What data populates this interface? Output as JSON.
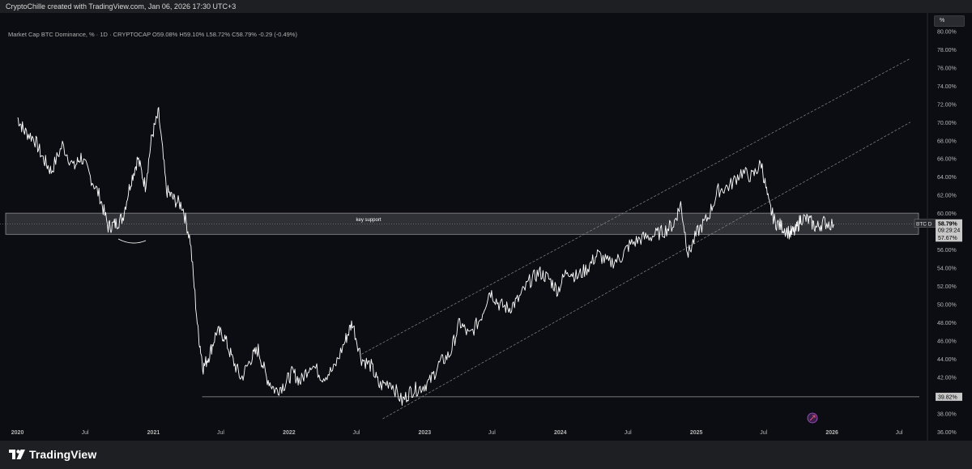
{
  "header": {
    "credit": "CryptoChille created with TradingView.com,  Jan 06, 2026 17:30 UTC+3"
  },
  "symbol_info": {
    "name": "Market Cap BTC Dominance, %",
    "interval": "1D",
    "exchange": "CRYPTOCAP",
    "open_label": "O",
    "open": "59.08%",
    "high_label": "H",
    "high": "59.10%",
    "low_label": "L",
    "low": "58.72%",
    "close_label": "C",
    "close": "58.79%",
    "change": "-0.29 (-0.49%)"
  },
  "scale_button": {
    "label": "%"
  },
  "price_axis": {
    "labels": [
      "80.00%",
      "78.00%",
      "76.00%",
      "74.00%",
      "72.00%",
      "70.00%",
      "68.00%",
      "66.00%",
      "64.00%",
      "62.00%",
      "60.00%",
      "58.00%",
      "56.00%",
      "54.00%",
      "52.00%",
      "50.00%",
      "48.00%",
      "46.00%",
      "44.00%",
      "42.00%",
      "40.00%",
      "38.00%",
      "36.00%"
    ],
    "ticker_tag": "BTC.D",
    "current_price": "58.79%",
    "countdown": "09:29:24",
    "zone_low_tag": "57.67%",
    "horizontal_level_tag": "39.82%"
  },
  "time_axis": {
    "labels": [
      "2020",
      "Jul",
      "2021",
      "Jul",
      "2022",
      "Jul",
      "2023",
      "Jul",
      "2024",
      "Jul",
      "2025",
      "Jul",
      "2026",
      "Jul"
    ]
  },
  "annotations": {
    "zone_label": "key support"
  },
  "footer": {
    "logo_text": "TradingView"
  },
  "colors": {
    "background": "#0c0d12",
    "candle": "#ffffff",
    "zone_fill": "#3c3d44",
    "channel_line": "#8a8a8a",
    "level_line": "#9a9a9a",
    "price_tag_bg": "#c8c8c8"
  },
  "chart_data": {
    "type": "line",
    "series": [
      {
        "values_x": [
          "2020-01-01",
          "2020-01-20",
          "2020-02-15",
          "2020-03-10",
          "2020-04-01",
          "2020-05-01",
          "2020-06-01",
          "2020-06-20",
          "2020-07-15",
          "2020-08-10",
          "2020-09-01",
          "2020-09-20",
          "2020-10-10",
          "2020-11-01",
          "2020-11-20",
          "2020-12-10",
          "2020-12-28",
          "2021-01-15",
          "2021-02-05",
          "2021-02-25",
          "2021-03-20",
          "2021-04-10",
          "2021-05-01",
          "2021-05-15",
          "2021-06-01",
          "2021-06-20",
          "2021-07-10",
          "2021-08-01",
          "2021-08-25",
          "2021-09-20",
          "2021-10-10",
          "2021-11-01",
          "2021-11-25",
          "2021-12-20",
          "2022-01-10",
          "2022-02-01",
          "2022-03-01",
          "2022-04-01",
          "2022-05-01",
          "2022-06-01",
          "2022-06-20",
          "2022-07-15",
          "2022-08-10",
          "2022-09-01",
          "2022-10-01",
          "2022-11-01",
          "2022-11-25",
          "2022-12-20",
          "2023-01-15",
          "2023-02-10",
          "2023-03-10",
          "2023-04-05",
          "2023-05-01",
          "2023-06-01",
          "2023-06-25",
          "2023-07-20",
          "2023-08-15",
          "2023-09-10",
          "2023-10-10",
          "2023-11-05",
          "2023-12-01",
          "2023-12-25",
          "2024-01-20",
          "2024-02-15",
          "2024-03-15",
          "2024-04-10",
          "2024-05-10",
          "2024-06-10",
          "2024-07-05",
          "2024-08-05",
          "2024-09-05",
          "2024-10-05",
          "2024-11-01",
          "2024-11-20",
          "2024-12-10",
          "2025-01-05",
          "2025-02-01",
          "2025-03-01",
          "2025-04-01",
          "2025-05-01",
          "2025-06-01",
          "2025-06-25",
          "2025-07-15",
          "2025-08-01",
          "2025-08-20",
          "2025-09-10",
          "2025-09-25",
          "2025-10-10",
          "2025-11-01",
          "2025-11-20",
          "2025-12-10",
          "2026-01-06"
        ],
        "values_y": [
          70.5,
          69.0,
          68.2,
          66.0,
          64.6,
          67.5,
          65.0,
          66.2,
          64.0,
          61.8,
          58.5,
          58.8,
          59.5,
          63.5,
          66.0,
          63.0,
          68.5,
          71.0,
          62.5,
          61.5,
          60.8,
          57.0,
          47.0,
          43.0,
          44.5,
          47.0,
          46.5,
          44.0,
          41.8,
          44.0,
          45.0,
          42.0,
          40.5,
          41.2,
          42.5,
          41.5,
          43.5,
          42.0,
          42.8,
          46.0,
          48.0,
          44.0,
          43.2,
          41.0,
          41.5,
          39.3,
          40.5,
          40.8,
          41.5,
          43.5,
          44.5,
          48.0,
          46.5,
          48.5,
          51.5,
          50.0,
          49.5,
          50.5,
          52.5,
          53.5,
          52.8,
          51.5,
          53.8,
          53.0,
          54.0,
          55.5,
          54.5,
          55.0,
          56.5,
          57.2,
          57.5,
          58.0,
          58.8,
          61.0,
          55.5,
          58.0,
          59.5,
          62.5,
          63.0,
          64.5,
          64.0,
          65.5,
          61.0,
          59.0,
          58.5,
          57.8,
          58.0,
          59.5,
          59.2,
          58.4,
          59.0,
          58.79
        ]
      }
    ],
    "key_support_zone": [
      57.67,
      60.0
    ],
    "horizontal_level": 39.82,
    "upper_channel_start": {
      "x": "2022-07-15",
      "y": 44.5
    },
    "upper_channel_end": {
      "x": "2026-07-31",
      "y": 77.0
    },
    "lower_channel_start": {
      "x": "2022-09-10",
      "y": 37.4
    },
    "lower_channel_end": {
      "x": "2026-07-31",
      "y": 70.0
    },
    "ylim": [
      35.0,
      82.0
    ],
    "xlim": [
      "2019-11-15",
      "2026-09-15"
    ],
    "grid": false
  }
}
